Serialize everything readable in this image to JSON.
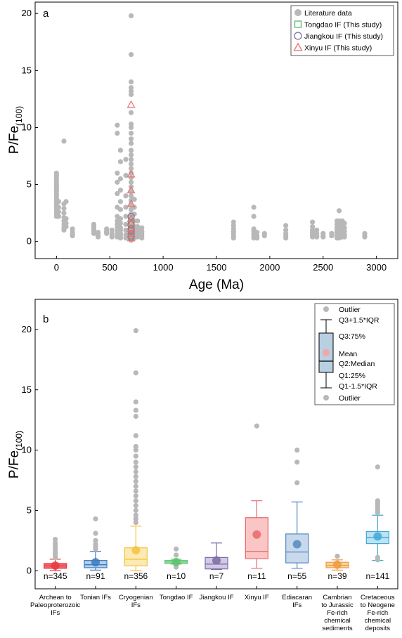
{
  "chart_data": [
    {
      "type": "scatter",
      "panel_label": "a",
      "xlabel": "Age (Ma)",
      "ylabel": "P/Fe",
      "ylabel_sub": "(100)",
      "xlim": [
        -200,
        3200
      ],
      "ylim": [
        -1.5,
        21
      ],
      "xticks": [
        0,
        500,
        1000,
        1500,
        2000,
        2500,
        3000
      ],
      "yticks": [
        0,
        5,
        10,
        15,
        20
      ],
      "legend_position": "top-right",
      "legend": [
        {
          "label": "Literature data",
          "marker": "circle-filled",
          "color": "#b8b8b8"
        },
        {
          "label": "Tongdao IF (This study)",
          "marker": "square-open",
          "color": "#55b86a"
        },
        {
          "label": "Jiangkou IF (This study)",
          "marker": "circle-open",
          "color": "#7f6ea6"
        },
        {
          "label": "Xinyu IF (This study)",
          "marker": "triangle-open",
          "color": "#ec7070"
        }
      ],
      "literature_groups": [
        {
          "x": 0,
          "values": [
            6.0,
            5.8,
            5.6,
            5.4,
            5.2,
            5.0,
            4.8,
            4.6,
            4.4,
            4.2,
            4.0,
            3.8,
            3.6,
            3.4,
            3.2,
            3.0,
            2.8,
            2.6,
            2.4,
            2.2
          ]
        },
        {
          "x": 20,
          "values": [
            3.5,
            3.0,
            2.6,
            2.2
          ]
        },
        {
          "x": 70,
          "values": [
            8.8,
            3.3,
            2.9,
            2.5,
            2.1,
            1.8,
            1.5,
            1.2,
            1.0
          ]
        },
        {
          "x": 90,
          "values": [
            3.5,
            2.0,
            1.6,
            1.3
          ]
        },
        {
          "x": 150,
          "values": [
            1.1,
            0.8,
            0.6,
            0.5
          ]
        },
        {
          "x": 350,
          "values": [
            1.5,
            1.3,
            1.1,
            0.9,
            0.7
          ]
        },
        {
          "x": 390,
          "values": [
            0.8,
            0.6,
            0.5,
            0.4
          ]
        },
        {
          "x": 470,
          "values": [
            1.1,
            0.9,
            0.8,
            0.7
          ]
        },
        {
          "x": 520,
          "values": [
            1.0,
            0.7,
            0.5,
            0.4
          ]
        },
        {
          "x": 570,
          "values": [
            10.2,
            9.5,
            6.0,
            5.2,
            4.2,
            3.0,
            2.2,
            1.8,
            1.5,
            1.2,
            0.9,
            0.6,
            0.4
          ]
        },
        {
          "x": 600,
          "values": [
            8.0,
            7.0,
            5.5,
            4.5,
            3.5,
            2.8,
            2.0,
            1.6,
            1.2,
            1.0,
            0.7,
            0.5,
            0.3
          ]
        },
        {
          "x": 650,
          "values": [
            7.2,
            5.8,
            4.0,
            3.0,
            2.2,
            1.5,
            1.0,
            0.6,
            0.3
          ]
        },
        {
          "x": 700,
          "values": [
            19.8,
            16.4,
            14.0,
            13.5,
            13.2,
            12.9,
            11.3,
            10.3,
            10.0,
            9.5,
            9.0,
            8.6,
            8.0,
            7.6,
            7.2,
            6.8,
            6.4,
            6.0,
            5.6,
            5.2,
            4.8,
            4.4,
            4.0,
            3.6,
            3.2,
            2.8,
            2.4,
            2.0,
            1.6,
            1.2,
            0.8,
            0.5,
            0.2,
            0.1
          ]
        },
        {
          "x": 730,
          "values": [
            3.7,
            3.0,
            2.4,
            1.8,
            1.3,
            0.9,
            0.5,
            0.3
          ]
        },
        {
          "x": 760,
          "values": [
            1.8,
            1.3,
            1.0,
            0.7,
            0.4
          ]
        },
        {
          "x": 800,
          "values": [
            1.2,
            0.9,
            0.7,
            0.5,
            0.3
          ]
        },
        {
          "x": 1660,
          "values": [
            1.7,
            1.4,
            1.1,
            0.9,
            0.7,
            0.5,
            0.3
          ]
        },
        {
          "x": 1850,
          "values": [
            3.0,
            2.2,
            1.1,
            0.9,
            0.7,
            0.5,
            0.3
          ]
        },
        {
          "x": 1880,
          "values": [
            0.8,
            0.5,
            0.3
          ]
        },
        {
          "x": 1950,
          "values": [
            0.7,
            0.5
          ]
        },
        {
          "x": 2150,
          "values": [
            1.4,
            1.0,
            0.7,
            0.5,
            0.3
          ]
        },
        {
          "x": 2400,
          "values": [
            1.7,
            1.3,
            1.0,
            0.8,
            0.6,
            0.4
          ]
        },
        {
          "x": 2440,
          "values": [
            1.0,
            0.7,
            0.5,
            0.4
          ]
        },
        {
          "x": 2500,
          "values": [
            0.7,
            0.5,
            0.4
          ]
        },
        {
          "x": 2580,
          "values": [
            0.7,
            0.5
          ]
        },
        {
          "x": 2630,
          "values": [
            1.8,
            1.5,
            1.2,
            1.0,
            0.8,
            0.6,
            0.4,
            0.3
          ]
        },
        {
          "x": 2650,
          "values": [
            2.7,
            1.8,
            1.4,
            1.1,
            0.9,
            0.7,
            0.5,
            0.3
          ]
        },
        {
          "x": 2680,
          "values": [
            1.8,
            1.5,
            1.2,
            0.9,
            0.6,
            0.4
          ]
        },
        {
          "x": 2700,
          "values": [
            1.6,
            1.2,
            0.9,
            0.6,
            0.4
          ]
        },
        {
          "x": 2890,
          "values": [
            0.7,
            0.5,
            0.4
          ]
        }
      ],
      "this_study": [
        {
          "name": "Tongdao IF (This study)",
          "x": 700,
          "values": [
            2.0,
            1.6,
            1.2,
            0.9,
            0.7,
            0.5
          ]
        },
        {
          "name": "Jiangkou IF (This study)",
          "x": 700,
          "values": [
            2.2,
            1.5,
            1.1,
            0.7,
            0.4
          ]
        },
        {
          "name": "Xinyu IF (This study)",
          "x": 700,
          "values": [
            12.0,
            5.9,
            4.5,
            3.3,
            2.0,
            1.6,
            1.1,
            0.7,
            0.3
          ]
        }
      ]
    },
    {
      "type": "box",
      "panel_label": "b",
      "ylabel": "P/Fe",
      "ylabel_sub": "(100)",
      "ylim": [
        -1.5,
        22.5
      ],
      "yticks": [
        0,
        5,
        10,
        15,
        20
      ],
      "categories": [
        {
          "label": [
            "Archean to",
            "Paleoproterozoic",
            "IFs"
          ],
          "n": "n=345",
          "color": "#e8393f",
          "fill": "#e8393f",
          "q1": 0.2,
          "median": 0.4,
          "q3": 0.6,
          "whisker_low": 0.0,
          "whisker_high": 0.95,
          "mean": 0.42,
          "outliers": [
            1.1,
            1.3,
            1.5,
            1.7,
            1.9,
            2.1,
            2.3,
            2.6
          ]
        },
        {
          "label": [
            "Tonian IFs"
          ],
          "n": "n=91",
          "color": "#3b79c0",
          "fill": "#9dbde3",
          "q1": 0.25,
          "median": 0.5,
          "q3": 0.85,
          "whisker_low": 0.05,
          "whisker_high": 1.6,
          "mean": 0.7,
          "outliers": [
            1.8,
            2.0,
            2.2,
            2.5,
            3.1,
            4.3
          ]
        },
        {
          "label": [
            "Cryogenian",
            "IFs"
          ],
          "n": "n=356",
          "color": "#f6c23f",
          "fill": "#fbe29a",
          "q1": 0.4,
          "median": 0.95,
          "q3": 1.9,
          "whisker_low": 0.0,
          "whisker_high": 3.7,
          "mean": 1.7,
          "outliers": [
            4.0,
            4.3,
            4.6,
            5.0,
            5.4,
            5.8,
            6.2,
            6.6,
            7.0,
            7.4,
            7.8,
            8.2,
            8.6,
            9.0,
            9.5,
            10.0,
            10.3,
            11.2,
            12.8,
            13.3,
            14.0,
            16.4,
            19.9
          ]
        },
        {
          "label": [
            "Tongdao IF"
          ],
          "n": "n=10",
          "color": "#5cc36e",
          "fill": "#a9e0b3",
          "q1": 0.6,
          "median": 0.72,
          "q3": 0.85,
          "whisker_low": 0.55,
          "whisker_high": 0.95,
          "mean": 0.72,
          "outliers": [
            0.3,
            1.3,
            1.8
          ]
        },
        {
          "label": [
            "Jiangkou IF"
          ],
          "n": "n=7",
          "color": "#7d6aa6",
          "fill": "#c3b8db",
          "q1": 0.15,
          "median": 0.55,
          "q3": 1.1,
          "whisker_low": 0.1,
          "whisker_high": 2.3,
          "mean": 0.85,
          "outliers": []
        },
        {
          "label": [
            "Xinyu IF"
          ],
          "n": "n=11",
          "color": "#e8686b",
          "fill": "#f7b3b2",
          "q1": 1.0,
          "median": 1.6,
          "q3": 4.4,
          "whisker_low": 0.2,
          "whisker_high": 5.8,
          "mean": 3.0,
          "outliers": [
            12.0
          ]
        },
        {
          "label": [
            "Ediacaran",
            "IFs"
          ],
          "n": "n=55",
          "color": "#5688c0",
          "fill": "#b6cce6",
          "q1": 0.65,
          "median": 1.55,
          "q3": 3.05,
          "whisker_low": 0.2,
          "whisker_high": 5.7,
          "mean": 2.2,
          "outliers": [
            7.3,
            9.0,
            10.0
          ]
        },
        {
          "label": [
            "Cambrian",
            "to Jurassic",
            "Fe-rich",
            "chemical",
            "sediments"
          ],
          "n": "n=39",
          "color": "#ef9a3c",
          "fill": "#f7c58a",
          "q1": 0.25,
          "median": 0.45,
          "q3": 0.7,
          "whisker_low": 0.05,
          "whisker_high": 0.9,
          "mean": 0.5,
          "outliers": [
            1.2
          ]
        },
        {
          "label": [
            "Cretaceous",
            "to Neogene",
            "Fe-rich",
            "chemical",
            "deposits"
          ],
          "n": "n=141",
          "color": "#3ea9d6",
          "fill": "#a6d8ef",
          "q1": 2.25,
          "median": 2.75,
          "q3": 3.25,
          "whisker_low": 0.85,
          "whisker_high": 4.6,
          "mean": 2.85,
          "outliers": [
            0.9,
            1.1,
            4.8,
            5.0,
            5.2,
            5.4,
            5.6,
            5.8,
            8.6
          ]
        }
      ],
      "legend_position": "top-right",
      "legend_items": [
        "Outlier",
        "Q3+1.5*IQR",
        "Q3:75%",
        "Mean",
        "Q2:Median",
        "Q1:25%",
        "Q1-1.5*IQR",
        "Outlier"
      ]
    }
  ]
}
